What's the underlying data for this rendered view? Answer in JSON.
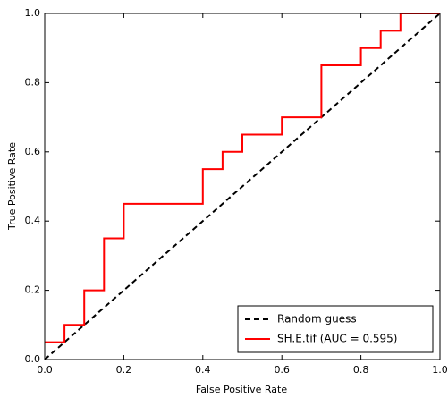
{
  "chart_data": {
    "type": "line",
    "xlabel": "False Positive Rate",
    "ylabel": "True Positive Rate",
    "xlim": [
      0,
      1
    ],
    "ylim": [
      0,
      1
    ],
    "xticks": [
      {
        "value": 0,
        "label": "0.0"
      },
      0.2,
      0.4,
      0.6,
      0.8,
      {
        "value": 1,
        "label": "1.0"
      }
    ],
    "yticks": [
      {
        "value": 0,
        "label": "0.0"
      },
      0.2,
      0.4,
      0.6,
      0.8,
      {
        "value": 1,
        "label": "1.0"
      }
    ],
    "legend": "lower right",
    "series": [
      {
        "name": "Random guess",
        "color": "#000000",
        "linestyle": "dashed",
        "x": [
          0,
          1
        ],
        "values": [
          0,
          1
        ]
      },
      {
        "name": "SH.E.tif (AUC = 0.595)",
        "color": "#ff0000",
        "linestyle": "solid",
        "x": [
          0,
          0.05,
          0.05,
          0.1,
          0.1,
          0.15,
          0.15,
          0.2,
          0.2,
          0.4,
          0.4,
          0.45,
          0.45,
          0.5,
          0.5,
          0.6,
          0.6,
          0.7,
          0.7,
          0.8,
          0.8,
          0.85,
          0.85,
          0.9,
          0.9,
          1.0
        ],
        "values": [
          0.05,
          0.05,
          0.1,
          0.1,
          0.2,
          0.2,
          0.35,
          0.35,
          0.45,
          0.45,
          0.55,
          0.55,
          0.6,
          0.6,
          0.65,
          0.65,
          0.7,
          0.7,
          0.85,
          0.85,
          0.9,
          0.9,
          0.95,
          0.95,
          1.0,
          1.0
        ]
      }
    ]
  }
}
